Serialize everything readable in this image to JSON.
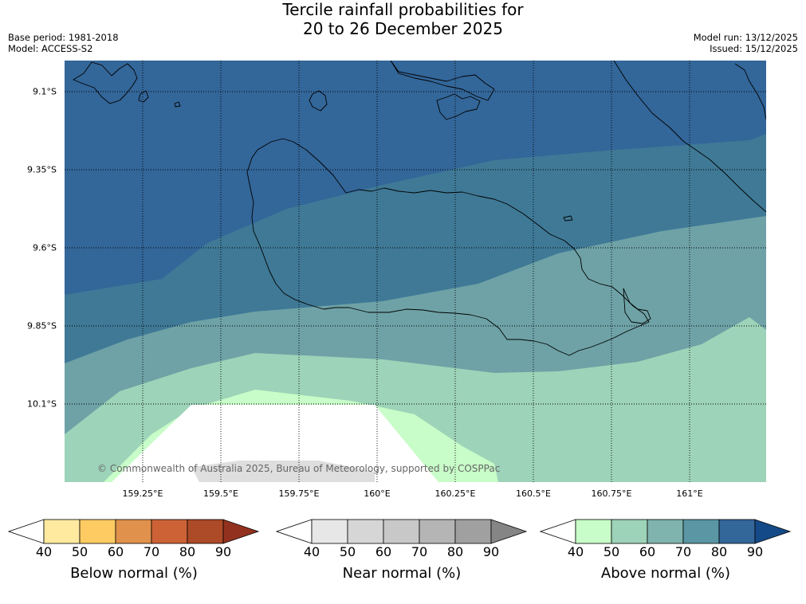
{
  "title": {
    "line1": "Tercile rainfall probabilities for",
    "line2": "20 to 26 December 2025"
  },
  "meta": {
    "base_period": "Base period: 1981-2018",
    "model": "Model: ACCESS-S2",
    "model_run": "Model run: 13/12/2025",
    "issued": "Issued: 15/12/2025"
  },
  "map": {
    "lat_labels": [
      "9.1°S",
      "9.35°S",
      "9.6°S",
      "9.85°S",
      "10.1°S"
    ],
    "lon_labels": [
      "159.25°E",
      "159.5°E",
      "159.75°E",
      "160°E",
      "160.25°E",
      "160.5°E",
      "160.75°E",
      "161°E"
    ],
    "copyright": "© Commonwealth of Australia 2025, Bureau of Meteorology, supported by COSPPac"
  },
  "legends": [
    {
      "label": "Below normal (%)",
      "ticks": [
        "40",
        "50",
        "60",
        "70",
        "80",
        "90"
      ],
      "colors": [
        "#ffffff",
        "#ffeaa0",
        "#fecb62",
        "#e0914b",
        "#cc6236",
        "#ad4a28",
        "#92321e"
      ]
    },
    {
      "label": "Near normal (%)",
      "ticks": [
        "40",
        "50",
        "60",
        "70",
        "80",
        "90"
      ],
      "colors": [
        "#ffffff",
        "#e7e7e7",
        "#d6d6d6",
        "#c8c8c8",
        "#b5b5b5",
        "#a0a0a0",
        "#858585"
      ]
    },
    {
      "label": "Above normal (%)",
      "ticks": [
        "40",
        "50",
        "60",
        "70",
        "80",
        "90"
      ],
      "colors": [
        "#ffffff",
        "#c8fcc8",
        "#9dd3b8",
        "#7fb3ad",
        "#5a96a4",
        "#336699",
        "#154a88"
      ]
    }
  ]
}
